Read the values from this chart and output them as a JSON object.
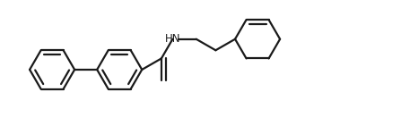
{
  "bg_color": "#ffffff",
  "line_color": "#1a1a1a",
  "line_width": 1.6,
  "font_size": 8.5,
  "figsize": [
    4.47,
    1.5
  ],
  "dpi": 100,
  "r": 0.255
}
